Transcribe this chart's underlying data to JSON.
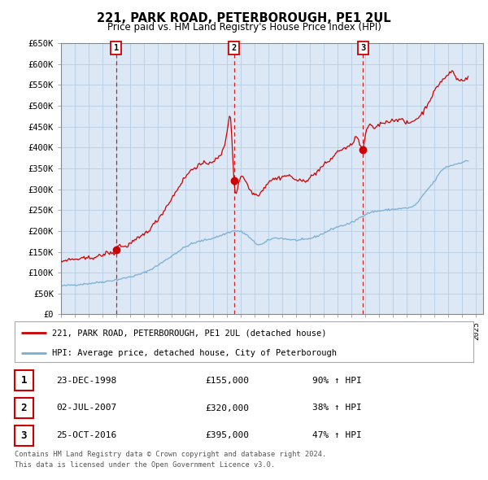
{
  "title": "221, PARK ROAD, PETERBOROUGH, PE1 2UL",
  "subtitle": "Price paid vs. HM Land Registry's House Price Index (HPI)",
  "ylabel_ticks": [
    "£0",
    "£50K",
    "£100K",
    "£150K",
    "£200K",
    "£250K",
    "£300K",
    "£350K",
    "£400K",
    "£450K",
    "£500K",
    "£550K",
    "£600K",
    "£650K"
  ],
  "ylim": [
    0,
    650000
  ],
  "ytick_vals": [
    0,
    50000,
    100000,
    150000,
    200000,
    250000,
    300000,
    350000,
    400000,
    450000,
    500000,
    550000,
    600000,
    650000
  ],
  "xlim_start": 1995.0,
  "xlim_end": 2025.5,
  "chart_bg_color": "#dce8f5",
  "background_color": "#ffffff",
  "grid_color": "#b0c8e0",
  "legend1_label": "221, PARK ROAD, PETERBOROUGH, PE1 2UL (detached house)",
  "legend2_label": "HPI: Average price, detached house, City of Peterborough",
  "red_line_color": "#cc0000",
  "blue_line_color": "#7aadd4",
  "transaction_color": "#cc0000",
  "transactions": [
    {
      "id": 1,
      "date_label": "23-DEC-1998",
      "year": 1998.98,
      "price": 155000,
      "pct_label": "90% ↑ HPI"
    },
    {
      "id": 2,
      "date_label": "02-JUL-2007",
      "year": 2007.5,
      "price": 320000,
      "pct_label": "38% ↑ HPI"
    },
    {
      "id": 3,
      "date_label": "25-OCT-2016",
      "year": 2016.82,
      "price": 395000,
      "pct_label": "47% ↑ HPI"
    }
  ],
  "footer_line1": "Contains HM Land Registry data © Crown copyright and database right 2024.",
  "footer_line2": "This data is licensed under the Open Government Licence v3.0."
}
